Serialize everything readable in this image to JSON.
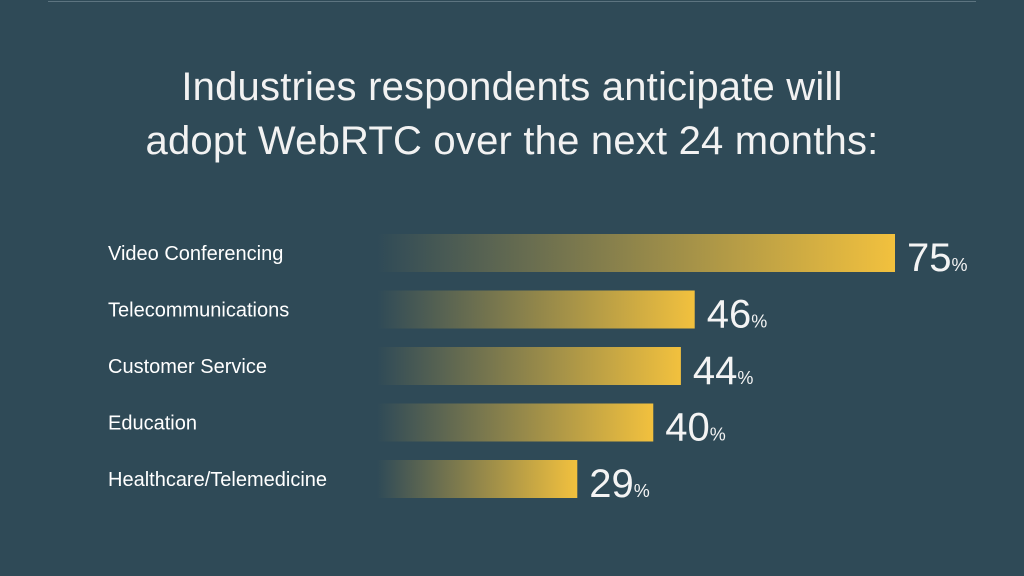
{
  "title_lines": [
    "Industries respondents anticipate will",
    "adopt WebRTC over the next 24 months:"
  ],
  "colors": {
    "background": "#2f4a57",
    "bar_end": "#f2c13e",
    "text": "#ffffff"
  },
  "chart_data": {
    "type": "bar",
    "orientation": "horizontal",
    "title": "Industries respondents anticipate will adopt WebRTC over the next 24 months:",
    "categories": [
      "Video Conferencing",
      "Telecommunications",
      "Customer Service",
      "Education",
      "Healthcare/Telemedicine"
    ],
    "values": [
      75,
      46,
      44,
      40,
      29
    ],
    "unit": "%",
    "xlim": [
      0,
      75
    ],
    "grid": false,
    "legend": "none"
  }
}
